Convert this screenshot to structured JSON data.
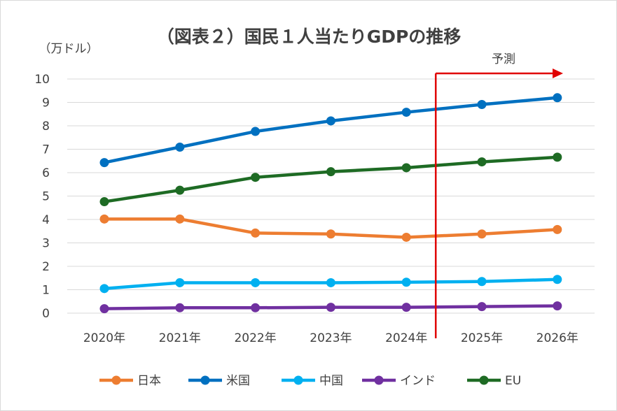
{
  "chart_data": {
    "type": "line",
    "title": "（図表２）国民１人当たりGDPの推移",
    "unit_label": "（万ドル）",
    "annotation": "予測",
    "categories": [
      "2020年",
      "2021年",
      "2022年",
      "2023年",
      "2024年",
      "2025年",
      "2026年"
    ],
    "ylim": [
      0,
      10
    ],
    "yticks": [
      0,
      1,
      2,
      3,
      4,
      5,
      6,
      7,
      8,
      9,
      10
    ],
    "grid": true,
    "legend_position": "bottom",
    "forecast_from_category": "2024年",
    "series": [
      {
        "name": "日本",
        "color": "#ED7D31",
        "values": [
          4.02,
          4.02,
          3.42,
          3.38,
          3.24,
          3.38,
          3.57
        ]
      },
      {
        "name": "米国",
        "color": "#0070C0",
        "values": [
          6.43,
          7.09,
          7.76,
          8.21,
          8.58,
          8.91,
          9.2
        ]
      },
      {
        "name": "中国",
        "color": "#00B0F0",
        "values": [
          1.05,
          1.3,
          1.3,
          1.3,
          1.32,
          1.35,
          1.44
        ]
      },
      {
        "name": "インド",
        "color": "#7030A0",
        "values": [
          0.19,
          0.23,
          0.23,
          0.25,
          0.25,
          0.28,
          0.31
        ]
      },
      {
        "name": "EU",
        "color": "#1E6B24",
        "values": [
          4.76,
          5.25,
          5.8,
          6.04,
          6.21,
          6.46,
          6.66
        ]
      }
    ],
    "forecast_marker_color": "#E00000"
  }
}
